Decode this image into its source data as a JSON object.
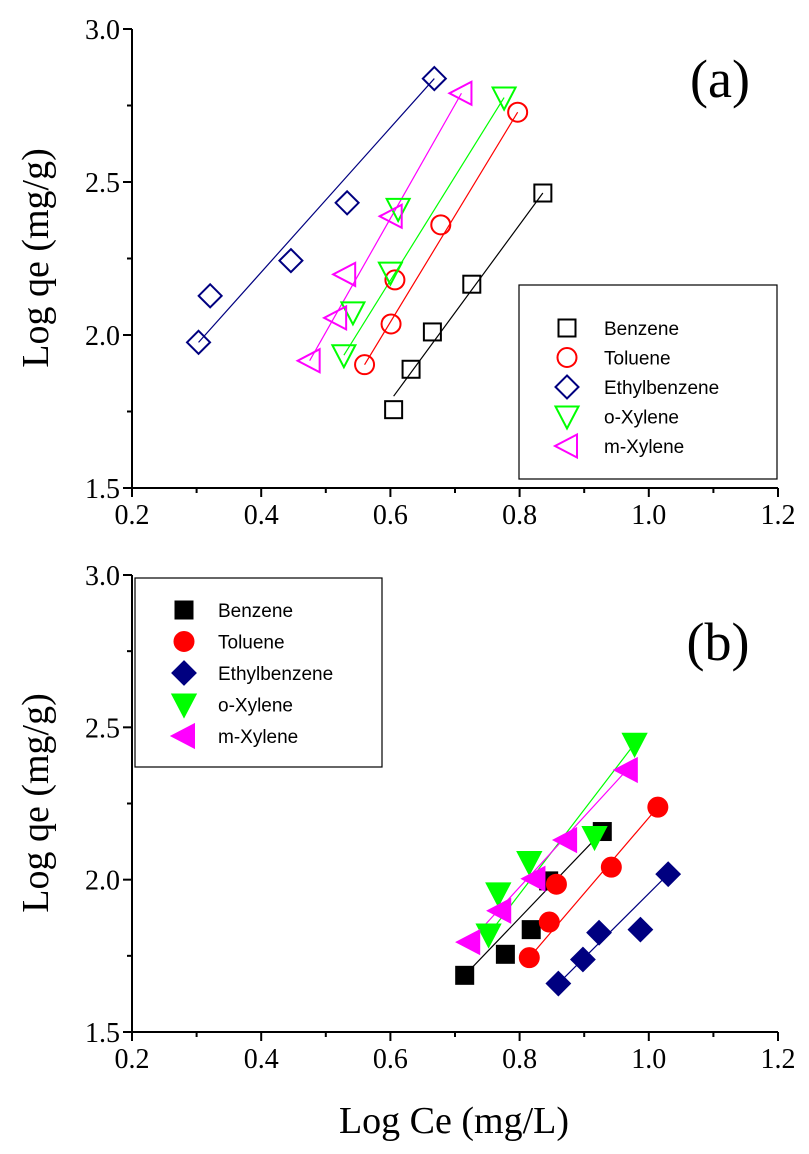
{
  "chart_data": [
    {
      "type": "scatter",
      "panel_label": "(a)",
      "ylabel": "Log qe (mg/g)",
      "xlim": [
        0.2,
        1.2
      ],
      "ylim": [
        1.5,
        3.0
      ],
      "xticks": [
        "0.2",
        "0.4",
        "0.6",
        "0.8",
        "1.0",
        "1.2"
      ],
      "yticks": [
        "1.5",
        "2.0",
        "2.5",
        "3.0"
      ],
      "legend_position": "right",
      "marker_fill": "open",
      "series": [
        {
          "name": "Benzene",
          "color": "#000000",
          "marker": "square",
          "x": [
            0.605,
            0.632,
            0.665,
            0.726,
            0.836
          ],
          "y": [
            1.756,
            1.888,
            2.01,
            2.166,
            2.464
          ],
          "fit": [
            [
              0.605,
              1.8
            ],
            [
              0.836,
              2.464
            ]
          ]
        },
        {
          "name": "Toluene",
          "color": "#ff0000",
          "marker": "circle",
          "x": [
            0.56,
            0.601,
            0.607,
            0.678,
            0.797
          ],
          "y": [
            1.903,
            2.036,
            2.18,
            2.36,
            2.728
          ],
          "fit": [
            [
              0.56,
              1.903
            ],
            [
              0.797,
              2.728
            ]
          ]
        },
        {
          "name": "Ethylbenzene",
          "color": "#000080",
          "marker": "diamond",
          "x": [
            0.303,
            0.321,
            0.446,
            0.533,
            0.668
          ],
          "y": [
            1.976,
            2.128,
            2.243,
            2.432,
            2.838
          ],
          "fit": [
            [
              0.303,
              1.976
            ],
            [
              0.668,
              2.838
            ]
          ]
        },
        {
          "name": "o-Xylene",
          "color": "#00ff00",
          "marker": "triangle-down",
          "x": [
            0.528,
            0.542,
            0.6,
            0.612,
            0.776
          ],
          "y": [
            1.934,
            2.074,
            2.204,
            2.412,
            2.776
          ],
          "fit": [
            [
              0.528,
              1.934
            ],
            [
              0.776,
              2.776
            ]
          ]
        },
        {
          "name": "m-Xylene",
          "color": "#ff00ff",
          "marker": "triangle-left",
          "x": [
            0.475,
            0.516,
            0.53,
            0.602,
            0.71
          ],
          "y": [
            1.916,
            2.056,
            2.198,
            2.388,
            2.79
          ],
          "fit": [
            [
              0.475,
              1.916
            ],
            [
              0.71,
              2.79
            ]
          ]
        }
      ]
    },
    {
      "type": "scatter",
      "panel_label": "(b)",
      "xlabel": "Log Ce (mg/L)",
      "ylabel": "Log qe (mg/g)",
      "xlim": [
        0.2,
        1.2
      ],
      "ylim": [
        1.5,
        3.0
      ],
      "xticks": [
        "0.2",
        "0.4",
        "0.6",
        "0.8",
        "1.0",
        "1.2"
      ],
      "yticks": [
        "1.5",
        "2.0",
        "2.5",
        "3.0"
      ],
      "legend_position": "top-left",
      "marker_fill": "filled",
      "series": [
        {
          "name": "Benzene",
          "color": "#000000",
          "marker": "square",
          "x": [
            0.715,
            0.778,
            0.818,
            0.845,
            0.928
          ],
          "y": [
            1.686,
            1.755,
            1.836,
            1.996,
            2.158
          ],
          "fit": [
            [
              0.715,
              1.686
            ],
            [
              0.928,
              2.158
            ]
          ]
        },
        {
          "name": "Toluene",
          "color": "#ff0000",
          "marker": "circle",
          "x": [
            0.815,
            0.846,
            0.857,
            0.942,
            1.014
          ],
          "y": [
            1.744,
            1.861,
            1.985,
            2.041,
            2.238
          ],
          "fit": [
            [
              0.815,
              1.744
            ],
            [
              1.014,
              2.238
            ]
          ]
        },
        {
          "name": "Ethylbenzene",
          "color": "#000080",
          "marker": "diamond",
          "x": [
            0.86,
            0.898,
            0.923,
            0.987,
            1.03
          ],
          "y": [
            1.659,
            1.738,
            1.826,
            1.836,
            2.018
          ],
          "fit": [
            [
              0.86,
              1.659
            ],
            [
              1.03,
              2.018
            ]
          ]
        },
        {
          "name": "o-Xylene",
          "color": "#00ff00",
          "marker": "triangle-down",
          "x": [
            0.752,
            0.767,
            0.815,
            0.916,
            0.978
          ],
          "y": [
            1.82,
            1.955,
            2.058,
            2.14,
            2.446
          ],
          "fit": [
            [
              0.752,
              1.82
            ],
            [
              0.978,
              2.446
            ]
          ]
        },
        {
          "name": "m-Xylene",
          "color": "#ff00ff",
          "marker": "triangle-left",
          "x": [
            0.722,
            0.77,
            0.823,
            0.872,
            0.966
          ],
          "y": [
            1.795,
            1.898,
            2.003,
            2.13,
            2.36
          ],
          "fit": [
            [
              0.722,
              1.795
            ],
            [
              0.966,
              2.36
            ]
          ]
        }
      ]
    }
  ]
}
